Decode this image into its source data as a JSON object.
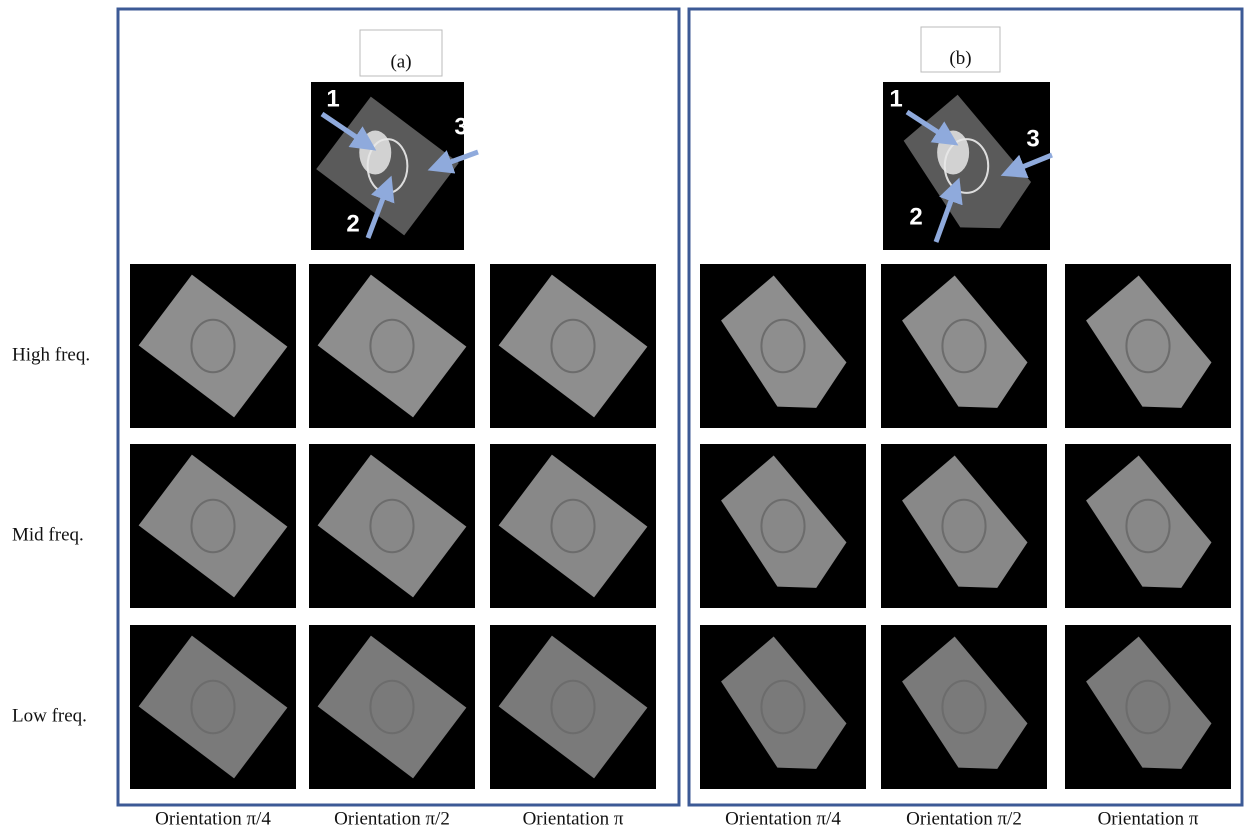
{
  "panels": [
    {
      "label": "(a)",
      "markers": [
        "1",
        "2",
        "3"
      ],
      "column_labels": [
        "Orientation π/4",
        "Orientation π/2",
        "Orientation π"
      ]
    },
    {
      "label": "(b)",
      "markers": [
        "1",
        "2",
        "3"
      ],
      "column_labels": [
        "Orientation π/4",
        "Orientation π/2",
        "Orientation π"
      ]
    }
  ],
  "row_labels": [
    "High freq.",
    "Mid freq.",
    "Low freq."
  ]
}
